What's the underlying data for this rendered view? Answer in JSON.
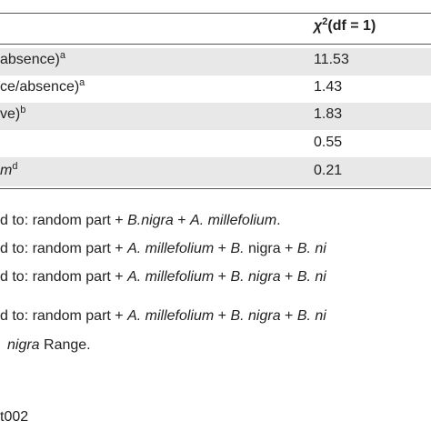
{
  "header": {
    "symbol": "χ",
    "power": "2",
    "rest": "(df = 1)"
  },
  "table": {
    "rows": [
      {
        "label": "absence)",
        "note": "a",
        "value": "11.53"
      },
      {
        "label": "ce/absence)",
        "note": "a",
        "value": "1.43"
      },
      {
        "label": "ve)",
        "note": "b",
        "value": "1.83"
      },
      {
        "value": "0.55"
      },
      {
        "label": "m",
        "note": "d",
        "value": "0.21"
      }
    ]
  },
  "footnotes": [
    [
      "d to: random part + ",
      "B.nigra",
      " + ",
      "A. millefolium",
      "."
    ],
    [
      "d to: random part + ",
      "A. millefolium",
      " + ",
      "B.",
      " nigra + ",
      "B. ni"
    ],
    [
      "d to: random part + ",
      "A. millefolium",
      " + ",
      "B. nigra",
      " + ",
      "B. ni"
    ],
    [
      "d to: random part + ",
      "A. millefolium",
      " + ",
      "B. nigra",
      " + ",
      "B. ni"
    ],
    [
      "nigra",
      " Range."
    ]
  ],
  "id": "t002"
}
